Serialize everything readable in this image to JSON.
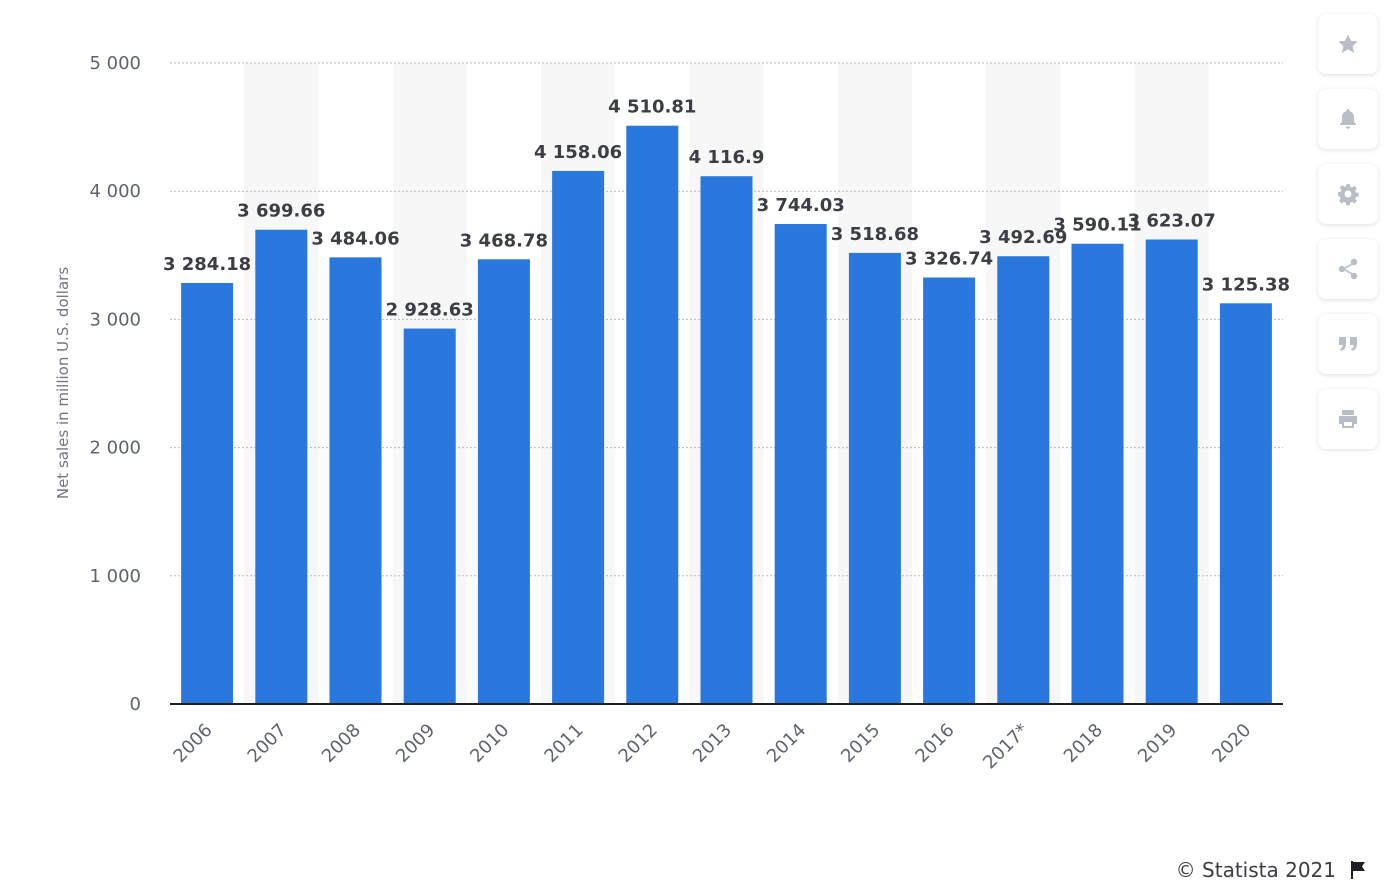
{
  "chart_data": {
    "type": "bar",
    "ylabel": "Net sales in million U.S. dollars",
    "ylim": [
      0,
      5000
    ],
    "yticks": [
      0,
      1000,
      2000,
      3000,
      4000,
      5000
    ],
    "ytick_labels": [
      "0",
      "1 000",
      "2 000",
      "3 000",
      "4 000",
      "5 000"
    ],
    "categories": [
      "2006",
      "2007",
      "2008",
      "2009",
      "2010",
      "2011",
      "2012",
      "2013",
      "2014",
      "2015",
      "2016",
      "2017*",
      "2018",
      "2019",
      "2020"
    ],
    "values": [
      3284.18,
      3699.66,
      3484.06,
      2928.63,
      3468.78,
      4158.06,
      4510.81,
      4116.9,
      3744.03,
      3518.68,
      3326.74,
      3492.69,
      3590.11,
      3623.07,
      3125.38
    ],
    "value_labels": [
      "3 284.18",
      "3 699.66",
      "3 484.06",
      "2 928.63",
      "3 468.78",
      "4 158.06",
      "4 510.81",
      "4 116.9",
      "3 744.03",
      "3 518.68",
      "3 326.74",
      "3 492.69",
      "3 590.11",
      "3 623.07",
      "3 125.38"
    ],
    "bar_color": "#2a77dd",
    "grid": true
  },
  "toolbar": {
    "buttons": [
      {
        "icon": "star-icon"
      },
      {
        "icon": "bell-icon"
      },
      {
        "icon": "gear-icon"
      },
      {
        "icon": "share-icon"
      },
      {
        "icon": "quote-icon"
      },
      {
        "icon": "print-icon"
      }
    ]
  },
  "footer": {
    "credit": "© Statista 2021",
    "flag_icon": "flag-icon"
  }
}
